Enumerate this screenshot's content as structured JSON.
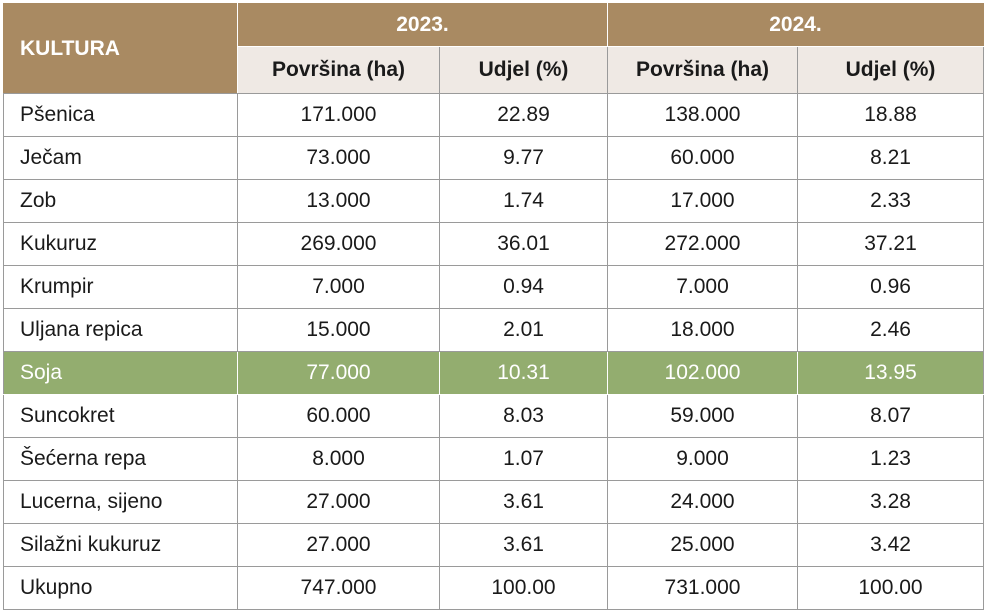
{
  "header": {
    "culture_label": "KULTURA",
    "years": [
      "2023.",
      "2024."
    ],
    "area_label": "Površina (ha)",
    "share_label": "Udjel (%)"
  },
  "highlight_color": "#93ad6f",
  "header_color": "#a98a62",
  "rows": [
    {
      "name": "Pšenica",
      "area2023": "171.000",
      "share2023": "22.89",
      "area2024": "138.000",
      "share2024": "18.88"
    },
    {
      "name": "Ječam",
      "area2023": "73.000",
      "share2023": "9.77",
      "area2024": "60.000",
      "share2024": "8.21"
    },
    {
      "name": "Zob",
      "area2023": "13.000",
      "share2023": "1.74",
      "area2024": "17.000",
      "share2024": "2.33"
    },
    {
      "name": "Kukuruz",
      "area2023": "269.000",
      "share2023": "36.01",
      "area2024": "272.000",
      "share2024": "37.21"
    },
    {
      "name": "Krumpir",
      "area2023": "7.000",
      "share2023": "0.94",
      "area2024": "7.000",
      "share2024": "0.96"
    },
    {
      "name": "Uljana repica",
      "area2023": "15.000",
      "share2023": "2.01",
      "area2024": "18.000",
      "share2024": "2.46"
    },
    {
      "name": "Soja",
      "area2023": "77.000",
      "share2023": "10.31",
      "area2024": "102.000",
      "share2024": "13.95"
    },
    {
      "name": "Suncokret",
      "area2023": "60.000",
      "share2023": "8.03",
      "area2024": "59.000",
      "share2024": "8.07"
    },
    {
      "name": "Šećerna repa",
      "area2023": "8.000",
      "share2023": "1.07",
      "area2024": "9.000",
      "share2024": "1.23"
    },
    {
      "name": "Lucerna, sijeno",
      "area2023": "27.000",
      "share2023": "3.61",
      "area2024": "24.000",
      "share2024": "3.28"
    },
    {
      "name": "Silažni kukuruz",
      "area2023": "27.000",
      "share2023": "3.61",
      "area2024": "25.000",
      "share2024": "3.42"
    },
    {
      "name": "Ukupno",
      "area2023": "747.000",
      "share2023": "100.00",
      "area2024": "731.000",
      "share2024": "100.00"
    }
  ]
}
